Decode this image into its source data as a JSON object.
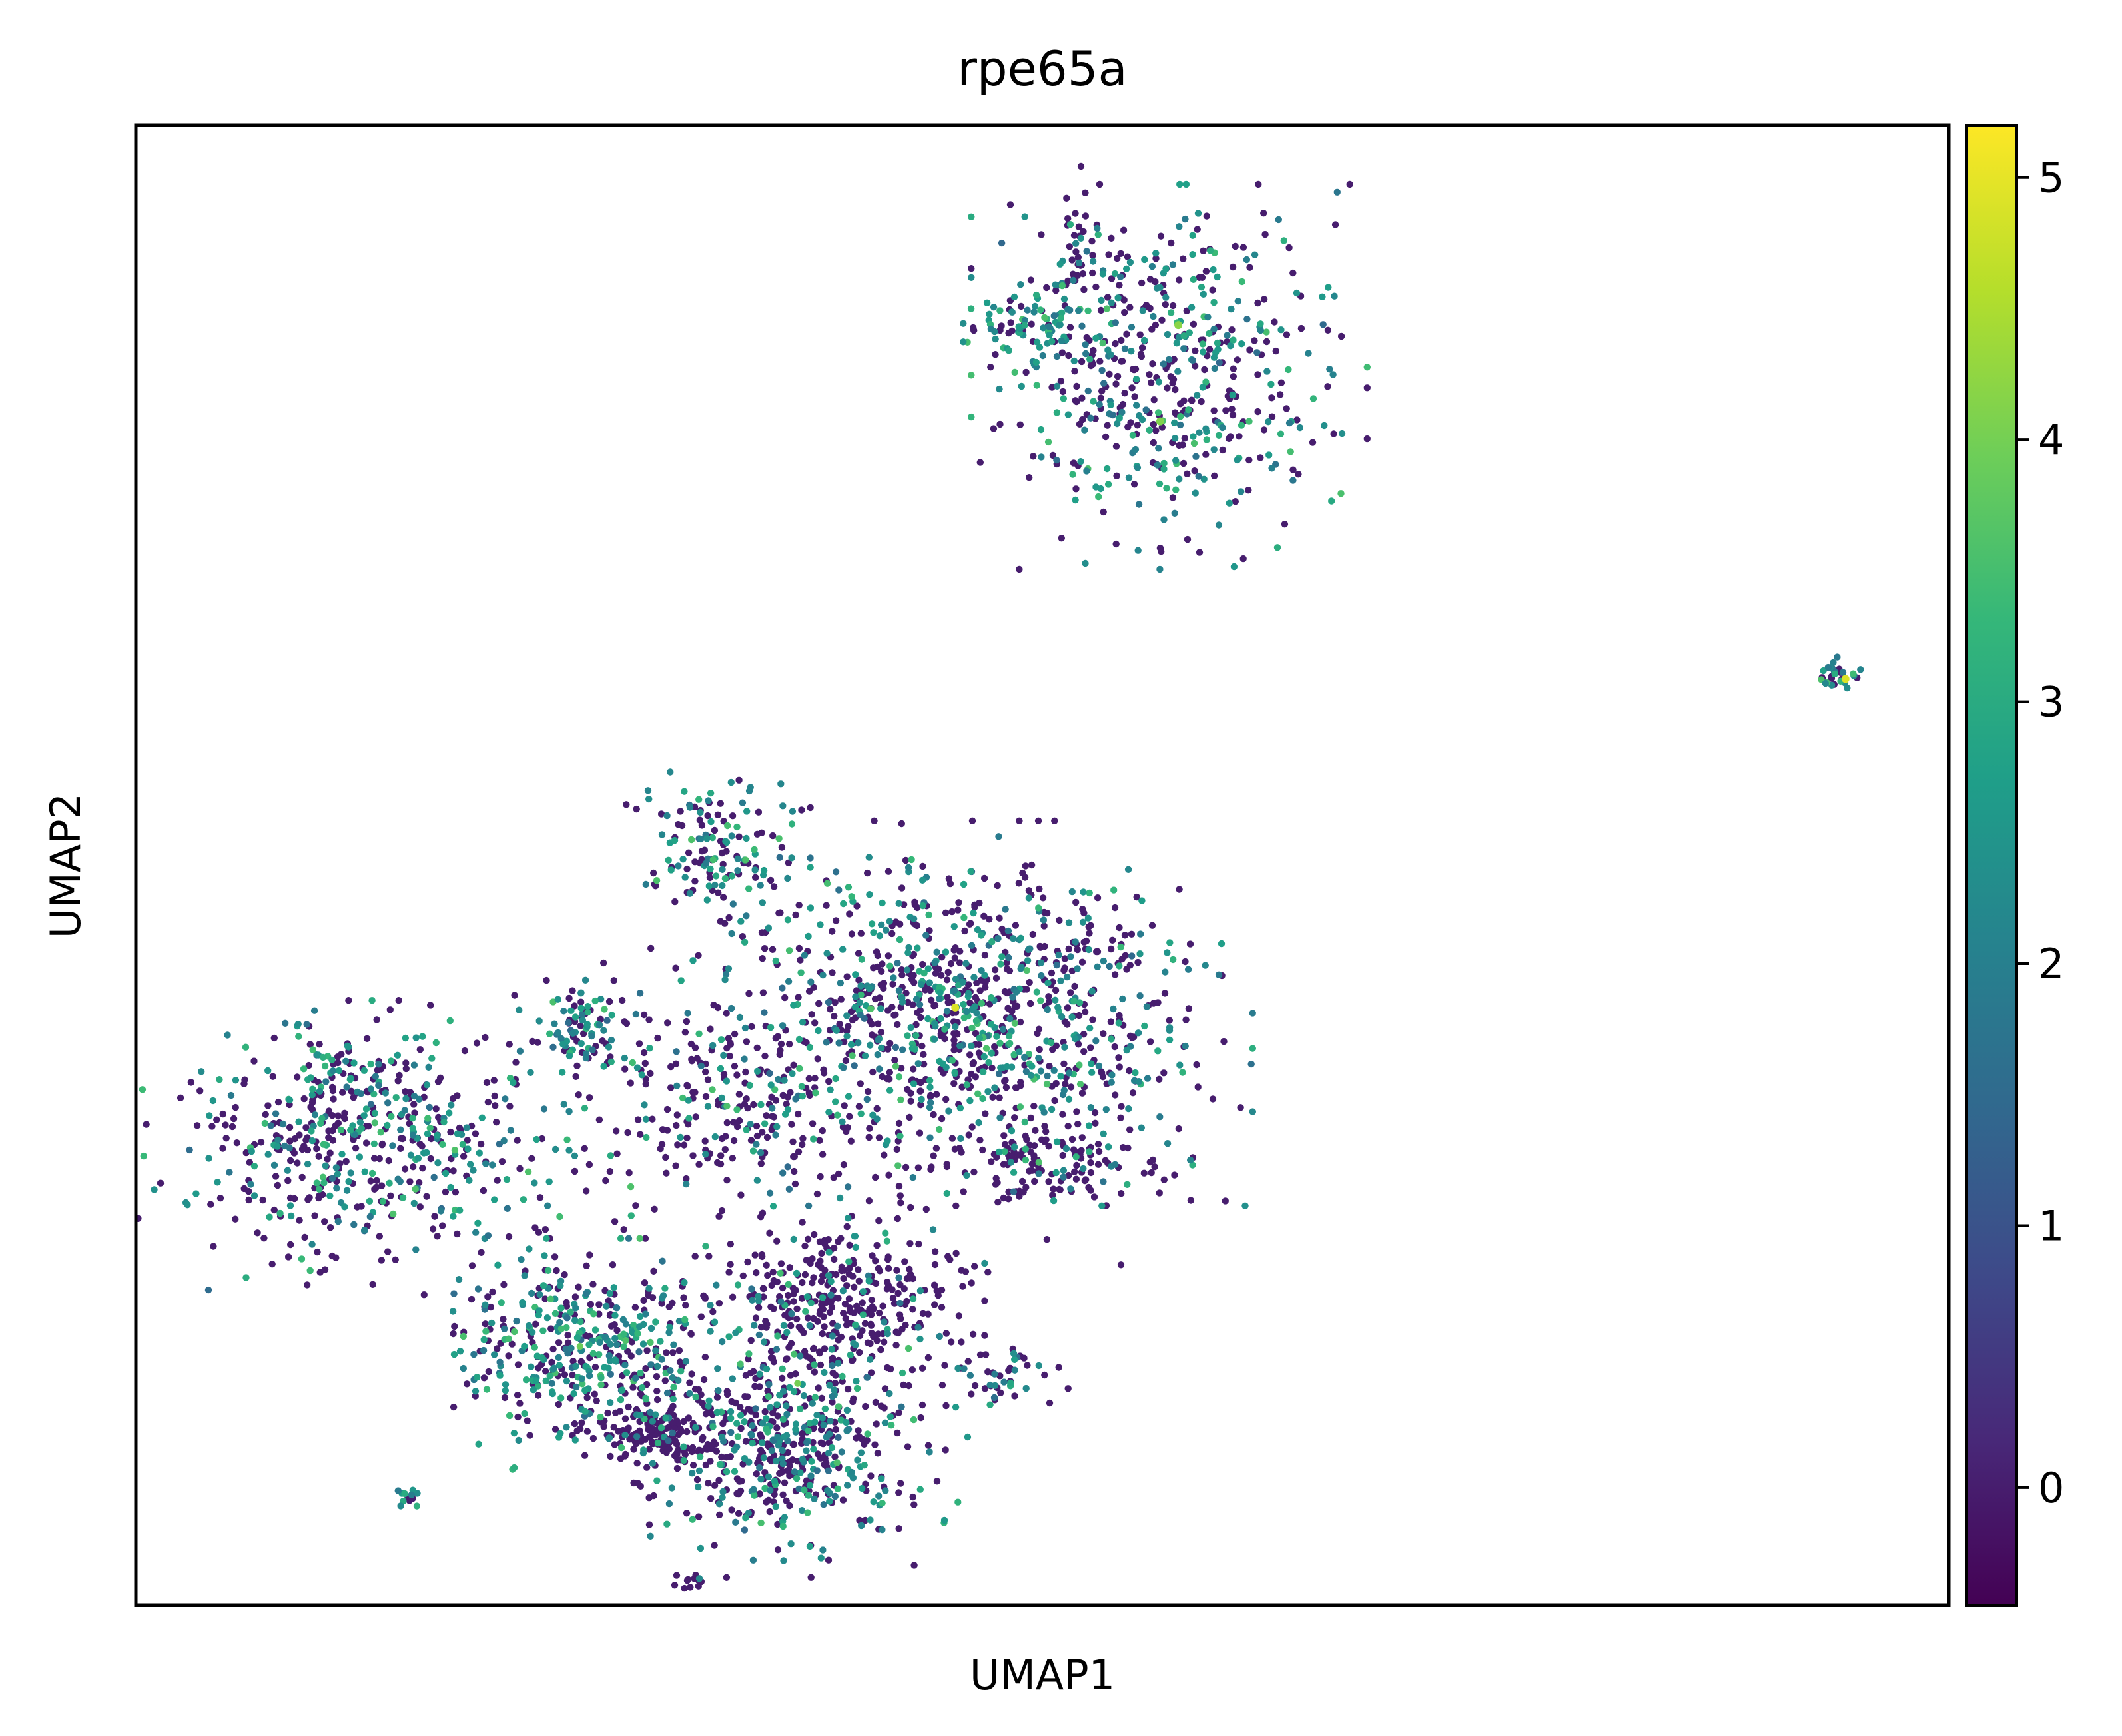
{
  "chart_data": {
    "type": "scatter",
    "title": "rpe65a",
    "xlabel": "UMAP1",
    "ylabel": "UMAP2",
    "xlim": [
      0,
      100
    ],
    "ylim": [
      0,
      100
    ],
    "grid": false,
    "point_color_by": "rpe65a expression",
    "colormap": "viridis",
    "colorbar": {
      "vmin": -0.45,
      "vmax": 5.2,
      "ticks": [
        0,
        1,
        2,
        3,
        4,
        5
      ],
      "tick_labels": [
        "0",
        "1",
        "2",
        "3",
        "4",
        "5"
      ],
      "colors": [
        "#440154",
        "#482878",
        "#3e4989",
        "#31688e",
        "#26828e",
        "#1f9e89",
        "#35b779",
        "#6ece58",
        "#b5de2b",
        "#fde725"
      ]
    },
    "clusters": [
      {
        "x": 57.0,
        "y": 83.0,
        "sx": 4.2,
        "sy": 5.0,
        "n": 500,
        "pexpr": 0.5
      },
      {
        "x": 49.8,
        "y": 86.2,
        "sx": 1.6,
        "sy": 1.5,
        "n": 90,
        "pexpr": 0.65
      },
      {
        "x": 52.0,
        "y": 92.0,
        "sx": 0.7,
        "sy": 2.3,
        "n": 45,
        "pexpr": 0.3
      },
      {
        "x": 94.0,
        "y": 63.0,
        "sx": 0.5,
        "sy": 0.5,
        "n": 30,
        "pexpr": 0.8
      },
      {
        "x": 32.0,
        "y": 51.5,
        "sx": 2.0,
        "sy": 2.3,
        "n": 140,
        "pexpr": 0.6
      },
      {
        "x": 46.0,
        "y": 40.0,
        "sx": 6.0,
        "sy": 5.0,
        "n": 1000,
        "pexpr": 0.45
      },
      {
        "x": 50.5,
        "y": 30.0,
        "sx": 3.0,
        "sy": 1.4,
        "n": 130,
        "pexpr": 0.15
      },
      {
        "x": 13.0,
        "y": 31.0,
        "sx": 5.5,
        "sy": 3.8,
        "n": 500,
        "pexpr": 0.45
      },
      {
        "x": 11.5,
        "y": 35.5,
        "sx": 1.7,
        "sy": 2.0,
        "n": 70,
        "pexpr": 0.5
      },
      {
        "x": 24.5,
        "y": 39.0,
        "sx": 1.5,
        "sy": 1.7,
        "n": 90,
        "pexpr": 0.5
      },
      {
        "x": 33.0,
        "y": 34.0,
        "sx": 3.5,
        "sy": 4.0,
        "n": 230,
        "pexpr": 0.3
      },
      {
        "x": 25.0,
        "y": 17.0,
        "sx": 3.5,
        "sy": 3.0,
        "n": 450,
        "pexpr": 0.55
      },
      {
        "x": 36.0,
        "y": 11.0,
        "sx": 3.8,
        "sy": 3.5,
        "n": 550,
        "pexpr": 0.45
      },
      {
        "x": 38.5,
        "y": 20.5,
        "sx": 3.2,
        "sy": 2.5,
        "n": 350,
        "pexpr": 0.15
      },
      {
        "x": 29.0,
        "y": 11.5,
        "sx": 1.5,
        "sy": 1.0,
        "n": 120,
        "pexpr": 0.05
      },
      {
        "x": 48.0,
        "y": 15.5,
        "sx": 1.5,
        "sy": 0.9,
        "n": 45,
        "pexpr": 0.3
      },
      {
        "x": 15.0,
        "y": 7.5,
        "sx": 0.4,
        "sy": 0.3,
        "n": 12,
        "pexpr": 0.8
      },
      {
        "x": 30.0,
        "y": 1.5,
        "sx": 0.8,
        "sy": 0.3,
        "n": 12,
        "pexpr": 0.1
      }
    ],
    "highlight_points": [
      {
        "x": 45.2,
        "y": 40.4,
        "value": 4.9
      },
      {
        "x": 94.3,
        "y": 62.6,
        "value": 4.9
      },
      {
        "x": 57.5,
        "y": 86.5,
        "value": 4.2
      },
      {
        "x": 56.5,
        "y": 80.0,
        "value": 4.1
      },
      {
        "x": 36.5,
        "y": 15.0,
        "value": 4.0
      },
      {
        "x": 24.5,
        "y": 17.5,
        "value": 3.9
      }
    ]
  }
}
